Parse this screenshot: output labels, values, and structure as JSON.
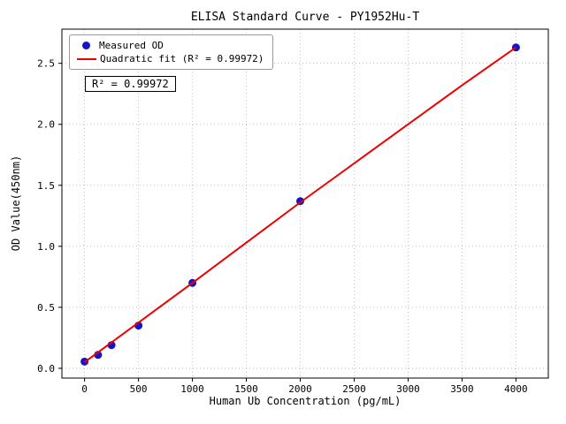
{
  "chart_data": {
    "type": "scatter",
    "title": "ELISA Standard Curve - PY1952Hu-T",
    "xlabel": "Human Ub Concentration (pg/mL)",
    "ylabel": "OD Value(450nm)",
    "xlim": [
      -210,
      4300
    ],
    "ylim": [
      -0.08,
      2.78
    ],
    "xticks": [
      0,
      500,
      1000,
      1500,
      2000,
      2500,
      3000,
      3500,
      4000
    ],
    "xtick_labels": [
      "0",
      "500",
      "1000",
      "1500",
      "2000",
      "2500",
      "3000",
      "3500",
      "4000"
    ],
    "yticks": [
      0.0,
      0.5,
      1.0,
      1.5,
      2.0,
      2.5
    ],
    "ytick_labels": [
      "0.0",
      "0.5",
      "1.0",
      "1.5",
      "2.0",
      "2.5"
    ],
    "grid": true,
    "legend_position": "upper left",
    "annotation": "R² = 0.99972",
    "series": [
      {
        "name": "Measured OD",
        "type": "scatter",
        "color": "#1414c8",
        "x": [
          0,
          125,
          250,
          500,
          1000,
          2000,
          4000
        ],
        "y": [
          0.055,
          0.11,
          0.19,
          0.35,
          0.7,
          1.37,
          2.63
        ]
      },
      {
        "name": "Quadratic fit (R² = 0.99972)",
        "type": "line",
        "color": "#ee0000",
        "x": [
          0,
          500,
          1000,
          1500,
          2000,
          2500,
          3000,
          3500,
          4000
        ],
        "y": [
          0.05,
          0.375,
          0.7,
          1.03,
          1.36,
          1.68,
          2.0,
          2.32,
          2.63
        ]
      }
    ]
  }
}
